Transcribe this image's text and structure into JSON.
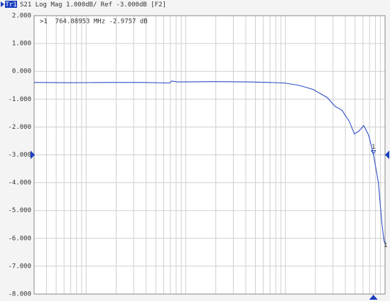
{
  "chart_data": {
    "type": "line",
    "trace_label": "Tr1",
    "title": "S21 Log Mag 1.000dB/ Ref -3.000dB [F2]",
    "xscale": "log",
    "xlim": [
      0.3,
      1000
    ],
    "xticks": [
      0.4,
      0.5,
      0.6,
      0.7,
      0.8,
      0.9,
      1,
      2,
      3,
      4,
      5,
      6,
      7,
      8,
      9,
      10,
      20,
      30,
      40,
      50,
      60,
      70,
      80,
      90,
      100,
      200,
      300,
      400,
      500,
      600,
      700,
      800,
      900
    ],
    "ylim": [
      -8,
      2
    ],
    "yticks": [
      {
        "value": 2,
        "label": "2.000"
      },
      {
        "value": 1,
        "label": "1.000"
      },
      {
        "value": 0,
        "label": "0.000"
      },
      {
        "value": -1,
        "label": "-1.000"
      },
      {
        "value": -2,
        "label": "-2.000"
      },
      {
        "value": -3,
        "label": "-3.000"
      },
      {
        "value": -4,
        "label": "-4.000"
      },
      {
        "value": -5,
        "label": "-5.000"
      },
      {
        "value": -6,
        "label": "-6.000"
      },
      {
        "value": -7,
        "label": "-7.000"
      },
      {
        "value": -8,
        "label": "-8.000"
      }
    ],
    "grid": true,
    "ref_level": -3,
    "x": [
      0.3,
      0.7,
      1.6,
      3.7,
      6.9,
      7.2,
      8.3,
      19.6,
      43,
      70,
      98,
      136,
      190,
      265,
      313,
      370,
      438,
      493,
      545,
      612,
      686,
      764.88953,
      858,
      932,
      979,
      1000
    ],
    "series": [
      {
        "name": "Tr1",
        "color": "#2f4fc4",
        "values": [
          -0.4,
          -0.41,
          -0.4,
          -0.4,
          -0.42,
          -0.35,
          -0.38,
          -0.37,
          -0.38,
          -0.4,
          -0.42,
          -0.5,
          -0.65,
          -0.95,
          -1.25,
          -1.4,
          -1.8,
          -2.25,
          -2.15,
          -1.95,
          -2.3,
          -2.9757,
          -4.0,
          -5.5,
          -6.1,
          -6.2
        ]
      }
    ],
    "trace_end_label": "1",
    "markers": [
      {
        "name": "1",
        "x": 764.88953,
        "y": -2.9757,
        "readout": ">1  764.88953 MHz -2.9757 dB"
      }
    ]
  }
}
